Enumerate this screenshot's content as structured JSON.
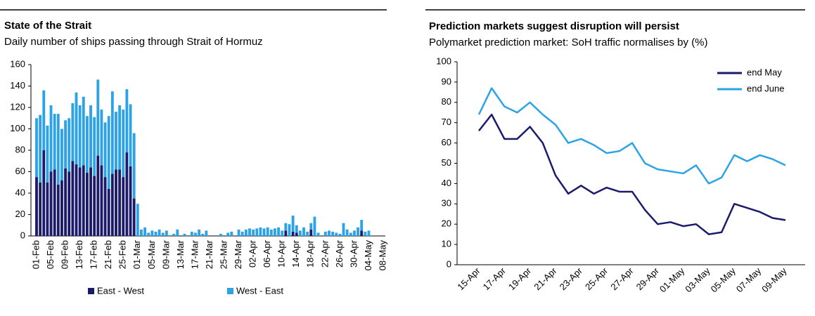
{
  "chart_data": [
    {
      "type": "bar",
      "stacked": true,
      "title": "State of the Strait",
      "subtitle": "Daily number of ships passing through Strait of Hormuz",
      "categories": [
        "01-Feb",
        null,
        null,
        null,
        "05-Feb",
        null,
        null,
        null,
        "09-Feb",
        null,
        null,
        null,
        "13-Feb",
        null,
        null,
        null,
        "17-Feb",
        null,
        null,
        null,
        "21-Feb",
        null,
        null,
        null,
        "25-Feb",
        null,
        null,
        null,
        "01-Mar",
        null,
        null,
        null,
        "05-Mar",
        null,
        null,
        null,
        "09-Mar",
        null,
        null,
        null,
        "13-Mar",
        null,
        null,
        null,
        "17-Mar",
        null,
        null,
        null,
        "21-Mar",
        null,
        null,
        null,
        "25-Mar",
        null,
        null,
        null,
        "29-Mar",
        null,
        null,
        null,
        "02-Apr",
        null,
        null,
        null,
        "06-Apr",
        null,
        null,
        null,
        "10-Apr",
        null,
        null,
        null,
        "14-Apr",
        null,
        null,
        null,
        "18-Apr",
        null,
        null,
        null,
        "22-Apr",
        null,
        null,
        null,
        "26-Apr",
        null,
        null,
        null,
        "30-Apr",
        null,
        null,
        null,
        "04-May",
        null,
        null,
        null,
        "08-May"
      ],
      "series": [
        {
          "name": "East - West",
          "color": "#1b1a6b",
          "values": [
            55,
            50,
            80,
            50,
            60,
            62,
            48,
            52,
            63,
            60,
            70,
            67,
            64,
            66,
            59,
            64,
            56,
            75,
            66,
            55,
            44,
            58,
            62,
            62,
            55,
            78,
            65,
            35,
            0,
            0,
            0,
            0,
            0,
            0,
            0,
            0,
            0,
            0,
            0,
            0,
            0,
            0,
            0,
            0,
            0,
            0,
            0,
            0,
            0,
            0,
            0,
            0,
            0,
            0,
            0,
            0,
            0,
            0,
            0,
            0,
            0,
            0,
            0,
            0,
            0,
            0,
            0,
            0,
            0,
            5,
            0,
            4,
            3,
            0,
            0,
            0,
            6,
            0,
            0,
            0,
            0,
            0,
            0,
            0,
            0,
            0,
            0,
            0,
            0,
            0,
            5,
            0,
            0,
            0,
            0,
            0,
            0
          ]
        },
        {
          "name": "West - East",
          "color": "#2ba3e6",
          "values": [
            55,
            63,
            56,
            53,
            62,
            52,
            66,
            48,
            45,
            50,
            54,
            67,
            58,
            64,
            53,
            58,
            55,
            71,
            52,
            51,
            68,
            77,
            54,
            60,
            63,
            59,
            58,
            61,
            30,
            6,
            8,
            3,
            5,
            4,
            6,
            3,
            5,
            0,
            2,
            6,
            0,
            2,
            0,
            4,
            3,
            6,
            2,
            5,
            0,
            0,
            0,
            2,
            0,
            3,
            4,
            0,
            6,
            4,
            6,
            7,
            6,
            7,
            8,
            7,
            8,
            6,
            7,
            8,
            5,
            7,
            11,
            15,
            7,
            5,
            8,
            4,
            6,
            18,
            3,
            0,
            4,
            5,
            4,
            3,
            2,
            12,
            6,
            3,
            5,
            8,
            10,
            4,
            5,
            0,
            0,
            0,
            0
          ]
        }
      ],
      "ylim": [
        0,
        160
      ],
      "yticks": [
        0,
        20,
        40,
        60,
        80,
        100,
        120,
        140,
        160
      ],
      "legend": "bottom"
    },
    {
      "type": "line",
      "title": "Prediction markets suggest disruption will persist",
      "subtitle": "Polymarket prediction market: SoH traffic normalises by (%)",
      "categories": [
        "15-Apr",
        null,
        "17-Apr",
        null,
        "19-Apr",
        null,
        "21-Apr",
        null,
        "23-Apr",
        null,
        "25-Apr",
        null,
        "27-Apr",
        null,
        "29-Apr",
        null,
        "01-May",
        null,
        "03-May",
        null,
        "05-May",
        null,
        "07-May",
        null,
        "09-May"
      ],
      "series": [
        {
          "name": "end May",
          "color": "#1b1a6b",
          "values": [
            66,
            74,
            62,
            62,
            68,
            60,
            44,
            35,
            39,
            35,
            38,
            36,
            36,
            27,
            20,
            21,
            19,
            20,
            15,
            16,
            30,
            28,
            26,
            23,
            22
          ]
        },
        {
          "name": "end June",
          "color": "#2ba3e6",
          "values": [
            74,
            87,
            78,
            75,
            80,
            74,
            69,
            60,
            62,
            59,
            55,
            56,
            60,
            50,
            47,
            46,
            45,
            49,
            40,
            43,
            54,
            51,
            54,
            52,
            49
          ]
        }
      ],
      "ylim": [
        0,
        100
      ],
      "yticks": [
        0,
        10,
        20,
        30,
        40,
        50,
        60,
        70,
        80,
        90,
        100
      ],
      "legend": "top-right"
    }
  ]
}
